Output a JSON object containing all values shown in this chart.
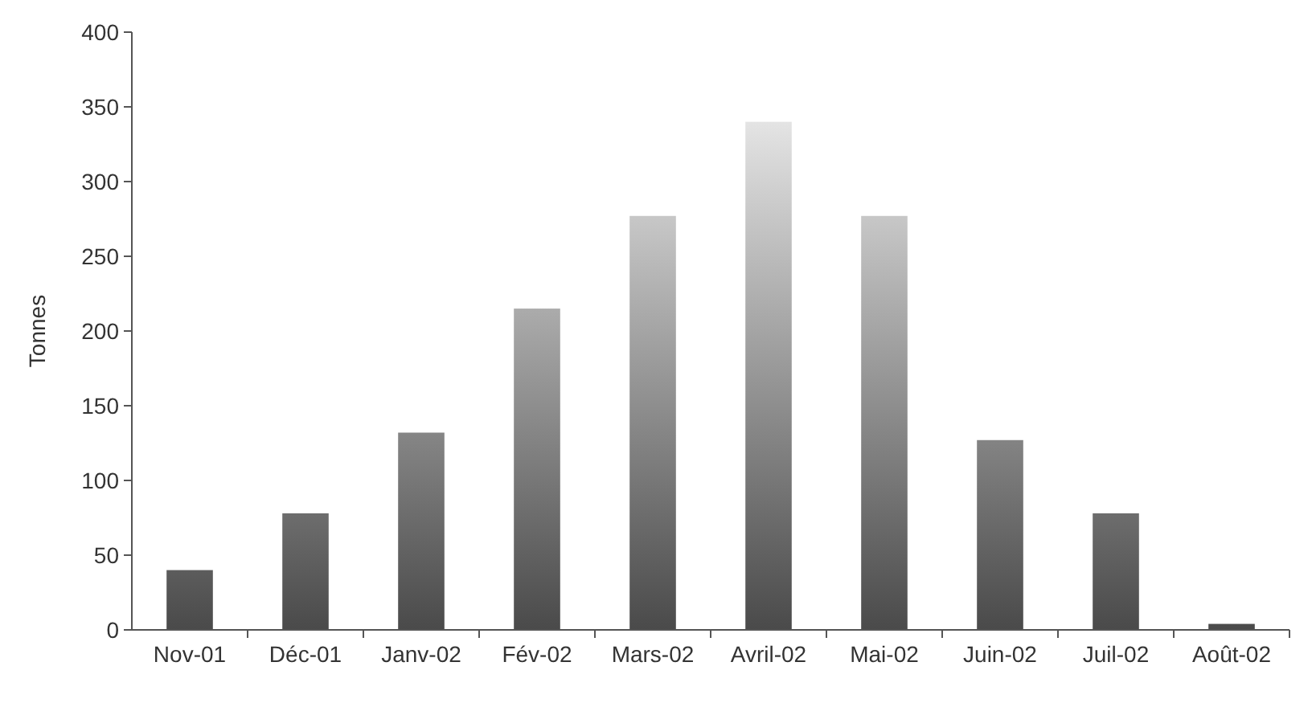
{
  "chart_data": {
    "type": "bar",
    "ylabel": "Tonnes",
    "categories": [
      "Nov-01",
      "Déc-01",
      "Janv-02",
      "Fév-02",
      "Mars-02",
      "Avril-02",
      "Mai-02",
      "Juin-02",
      "Juil-02",
      "Août-02"
    ],
    "values": [
      40,
      78,
      132,
      215,
      277,
      340,
      277,
      127,
      78,
      4
    ],
    "color": "#4a4a4a",
    "ylim": [
      0,
      400
    ],
    "yticks": [
      0,
      50,
      100,
      150,
      200,
      250,
      300,
      350,
      400
    ],
    "grid": false
  }
}
